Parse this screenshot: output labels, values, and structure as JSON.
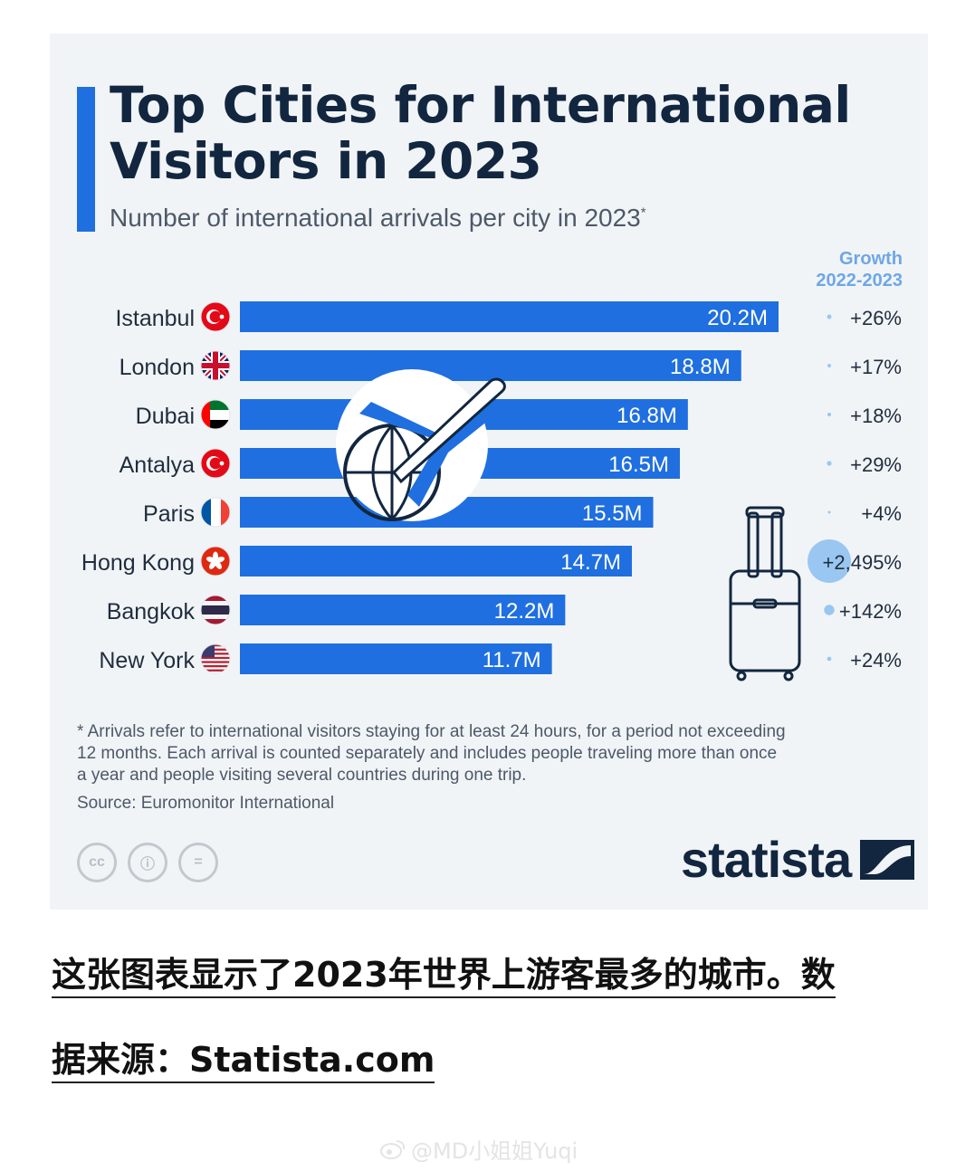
{
  "header": {
    "title": "Top Cities for International Visitors in 2023",
    "subtitle": "Number of international arrivals per city in 2023",
    "subtitle_mark": "*",
    "growth_header_1": "Growth",
    "growth_header_2": "2022-2023"
  },
  "chart_data": {
    "type": "bar",
    "orientation": "horizontal",
    "title": "Top Cities for International Visitors in 2023",
    "subtitle": "Number of international arrivals per city in 2023*",
    "categories": [
      "Istanbul",
      "London",
      "Dubai",
      "Antalya",
      "Paris",
      "Hong Kong",
      "Bangkok",
      "New York"
    ],
    "values": [
      20.2,
      18.8,
      16.8,
      16.5,
      15.5,
      14.7,
      12.2,
      11.7
    ],
    "value_labels": [
      "20.2M",
      "18.8M",
      "16.8M",
      "16.5M",
      "15.5M",
      "14.7M",
      "12.2M",
      "11.7M"
    ],
    "unit": "M",
    "growth": [
      26,
      17,
      18,
      29,
      4,
      2495,
      142,
      24
    ],
    "growth_labels": [
      "+26%",
      "+17%",
      "+18%",
      "+29%",
      "+4%",
      "+2,495%",
      "+142%",
      "+24%"
    ],
    "growth_header": "Growth 2022-2023",
    "xlim": [
      0,
      20.2
    ],
    "grid": false,
    "bar_color": "#1f6fe0",
    "growth_bubble_color": "#8fc2f0"
  },
  "flags": [
    "turkey-flag-icon",
    "uk-flag-icon",
    "uae-flag-icon",
    "turkey-flag-icon",
    "france-flag-icon",
    "hong-kong-flag-icon",
    "thailand-flag-icon",
    "usa-flag-icon"
  ],
  "footer": {
    "footnote": "* Arrivals refer to international visitors staying for at least 24 hours, for a period not exceeding\n   12 months. Each arrival is counted separately and includes people traveling more than once\n   a year and people visiting several countries during one trip.",
    "source": "Source: Euromonitor International",
    "brand": "statista",
    "license_icons": [
      "cc",
      "ⓘ",
      "="
    ]
  },
  "caption": {
    "line1": "这张图表显示了2023年世界上游客最多的城市。数",
    "line2": "据来源：Statista.com"
  },
  "watermark": "@MD小姐姐Yuqi",
  "colors": {
    "accent": "#1f6fe0",
    "title": "#12263f",
    "background": "#f1f4f7"
  }
}
